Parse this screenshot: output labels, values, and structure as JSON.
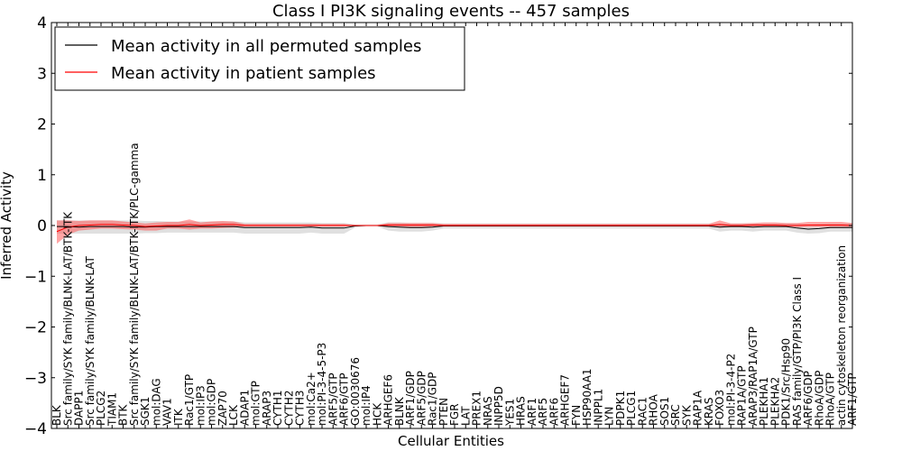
{
  "chart_data": {
    "type": "line",
    "title": "Class I PI3K signaling events -- 457 samples",
    "xlabel": "Cellular Entities",
    "ylabel": "Inferred Activity",
    "ylim": [
      -4,
      4
    ],
    "yticks": [
      -4,
      -3,
      -2,
      -1,
      0,
      1,
      2,
      3,
      4
    ],
    "ytick_labels": [
      "−4",
      "−3",
      "−2",
      "−1",
      "0",
      "1",
      "2",
      "3",
      "4"
    ],
    "grid": false,
    "legend_position": "top-left",
    "categories": [
      "BLK",
      "Src family/SYK family/BLNK-LAT/BTK-ITK",
      "DAPP1",
      "Src family/SYK family/BLNK-LAT",
      "PLCG2",
      "TIAM1",
      "BTK",
      "Src family/SYK family/BLNK-LAT/BTK-ITK/PLC-gamma",
      "SGK1",
      "mol:DAG",
      "VAV1",
      "ITK",
      "Rac1/GTP",
      "mol:IP3",
      "mol:GDP",
      "ZAP70",
      "LCK",
      "ADAP1",
      "mol:GTP",
      "ARAP3",
      "CYTH1",
      "CYTH2",
      "CYTH3",
      "mol:Ca2+",
      "mol:PI-3-4-5-P3",
      "ARF5/GTP",
      "ARF6/GTP",
      "GO:0030676",
      "mol:IP4",
      "HCK",
      "ARHGEF6",
      "BLNK",
      "ARF1/GDP",
      "ARF5/GDP",
      "Rac1/GDP",
      "PTEN",
      "FGR",
      "LAT",
      "PREX1",
      "NRAS",
      "INPP5D",
      "YES1",
      "HRAS",
      "ARF1",
      "ARF5",
      "ARF6",
      "ARHGEF7",
      "FYN",
      "HSP90AA1",
      "INPPL1",
      "LYN",
      "PDPK1",
      "PLCG1",
      "RAC1",
      "RHOA",
      "SOS1",
      "SRC",
      "SYK",
      "RAP1A",
      "KRAS",
      "FOXO3",
      "mol:PI-3-4-P2",
      "RAP1A/GTP",
      "ARAP3/RAP1A/GTP",
      "PLEKHA1",
      "PLEKHA2",
      "PDK1/Src/Hsp90",
      "RAS family/GTP/PI3K Class I",
      "ARF6/GDP",
      "RhoA/GDP",
      "RhoA/GTP",
      "actin cytoskeleton reorganization",
      "ARF1/GTP"
    ],
    "series": [
      {
        "name": "Mean activity in all permuted samples",
        "color": "#000000",
        "values": [
          -0.02,
          -0.02,
          -0.03,
          -0.02,
          -0.02,
          -0.02,
          -0.02,
          -0.03,
          -0.03,
          -0.02,
          -0.02,
          -0.02,
          -0.02,
          -0.02,
          -0.02,
          -0.02,
          -0.02,
          -0.04,
          -0.04,
          -0.04,
          -0.04,
          -0.04,
          -0.04,
          -0.03,
          -0.05,
          -0.05,
          -0.05,
          -0.01,
          0.0,
          0.0,
          -0.02,
          -0.03,
          -0.04,
          -0.04,
          -0.03,
          -0.01,
          -0.01,
          -0.01,
          -0.01,
          -0.01,
          -0.01,
          -0.01,
          -0.01,
          -0.01,
          -0.01,
          -0.01,
          -0.01,
          -0.01,
          -0.01,
          -0.01,
          -0.01,
          -0.01,
          -0.01,
          -0.01,
          -0.01,
          -0.01,
          -0.01,
          -0.01,
          -0.01,
          -0.01,
          -0.03,
          -0.02,
          -0.02,
          -0.03,
          -0.02,
          -0.02,
          -0.02,
          -0.05,
          -0.07,
          -0.06,
          -0.04,
          -0.04,
          -0.04
        ],
        "lower": [
          -0.16,
          -0.16,
          -0.16,
          -0.16,
          -0.16,
          -0.16,
          -0.16,
          -0.16,
          -0.15,
          -0.15,
          -0.14,
          -0.14,
          -0.14,
          -0.14,
          -0.14,
          -0.14,
          -0.14,
          -0.16,
          -0.16,
          -0.16,
          -0.16,
          -0.16,
          -0.16,
          -0.14,
          -0.16,
          -0.16,
          -0.16,
          -0.04,
          -0.02,
          -0.02,
          -0.1,
          -0.12,
          -0.12,
          -0.12,
          -0.1,
          -0.06,
          -0.06,
          -0.06,
          -0.06,
          -0.06,
          -0.06,
          -0.06,
          -0.06,
          -0.06,
          -0.06,
          -0.06,
          -0.06,
          -0.06,
          -0.06,
          -0.06,
          -0.06,
          -0.06,
          -0.06,
          -0.06,
          -0.06,
          -0.06,
          -0.06,
          -0.06,
          -0.06,
          -0.06,
          -0.12,
          -0.1,
          -0.1,
          -0.12,
          -0.1,
          -0.1,
          -0.1,
          -0.14,
          -0.16,
          -0.15,
          -0.12,
          -0.12,
          -0.12
        ],
        "upper": [
          0.1,
          0.1,
          0.1,
          0.1,
          0.1,
          0.1,
          0.1,
          0.1,
          0.09,
          0.09,
          0.08,
          0.08,
          0.08,
          0.08,
          0.08,
          0.08,
          0.08,
          0.06,
          0.06,
          0.06,
          0.06,
          0.06,
          0.06,
          0.06,
          0.05,
          0.05,
          0.05,
          0.02,
          0.02,
          0.02,
          0.06,
          0.06,
          0.05,
          0.05,
          0.05,
          0.04,
          0.04,
          0.04,
          0.04,
          0.04,
          0.04,
          0.04,
          0.04,
          0.04,
          0.04,
          0.04,
          0.04,
          0.04,
          0.04,
          0.04,
          0.04,
          0.04,
          0.04,
          0.04,
          0.04,
          0.04,
          0.04,
          0.04,
          0.04,
          0.04,
          0.04,
          0.04,
          0.04,
          0.04,
          0.04,
          0.04,
          0.04,
          0.04,
          0.02,
          0.03,
          0.04,
          0.04,
          0.04
        ]
      },
      {
        "name": "Mean activity in patient samples",
        "color": "#ff0000",
        "values": [
          -0.12,
          -0.03,
          0.0,
          0.01,
          0.02,
          0.02,
          0.01,
          0.0,
          -0.02,
          -0.01,
          0.0,
          0.0,
          0.02,
          0.0,
          0.01,
          0.02,
          0.02,
          0.0,
          0.0,
          0.0,
          0.0,
          0.0,
          0.0,
          0.0,
          0.0,
          0.0,
          0.0,
          0.0,
          0.0,
          0.0,
          0.01,
          0.01,
          0.01,
          0.01,
          0.01,
          0.0,
          0.0,
          0.0,
          0.0,
          0.0,
          0.0,
          0.0,
          0.0,
          0.0,
          0.0,
          0.0,
          0.0,
          0.0,
          0.0,
          0.0,
          0.0,
          0.0,
          0.0,
          0.0,
          0.0,
          0.0,
          0.0,
          0.0,
          0.0,
          0.0,
          0.02,
          0.0,
          0.0,
          0.01,
          0.01,
          0.01,
          0.0,
          0.0,
          0.01,
          0.01,
          0.01,
          0.01,
          0.0
        ],
        "lower": [
          -0.36,
          -0.18,
          -0.1,
          -0.08,
          -0.06,
          -0.06,
          -0.07,
          -0.08,
          -0.1,
          -0.1,
          -0.06,
          -0.06,
          -0.08,
          -0.06,
          -0.06,
          -0.05,
          -0.04,
          -0.02,
          -0.02,
          -0.02,
          -0.02,
          -0.02,
          -0.02,
          -0.02,
          -0.02,
          -0.02,
          -0.02,
          -0.01,
          -0.01,
          -0.01,
          -0.03,
          -0.03,
          -0.03,
          -0.03,
          -0.03,
          -0.02,
          -0.02,
          -0.02,
          -0.02,
          -0.02,
          -0.02,
          -0.02,
          -0.02,
          -0.02,
          -0.02,
          -0.02,
          -0.02,
          -0.02,
          -0.02,
          -0.02,
          -0.02,
          -0.02,
          -0.02,
          -0.02,
          -0.02,
          -0.02,
          -0.02,
          -0.02,
          -0.02,
          -0.02,
          -0.04,
          -0.03,
          -0.03,
          -0.03,
          -0.03,
          -0.03,
          -0.03,
          -0.03,
          -0.03,
          -0.03,
          -0.03,
          -0.03,
          -0.03
        ],
        "upper": [
          0.1,
          0.1,
          0.09,
          0.1,
          0.1,
          0.1,
          0.08,
          0.06,
          0.04,
          0.06,
          0.07,
          0.07,
          0.12,
          0.06,
          0.08,
          0.09,
          0.08,
          0.03,
          0.03,
          0.03,
          0.03,
          0.03,
          0.03,
          0.03,
          0.03,
          0.03,
          0.03,
          0.01,
          0.01,
          0.01,
          0.05,
          0.05,
          0.05,
          0.05,
          0.05,
          0.03,
          0.03,
          0.03,
          0.03,
          0.03,
          0.03,
          0.03,
          0.03,
          0.03,
          0.03,
          0.03,
          0.03,
          0.03,
          0.03,
          0.03,
          0.03,
          0.03,
          0.03,
          0.03,
          0.03,
          0.03,
          0.03,
          0.03,
          0.03,
          0.03,
          0.1,
          0.04,
          0.04,
          0.05,
          0.06,
          0.06,
          0.05,
          0.05,
          0.07,
          0.07,
          0.07,
          0.07,
          0.05
        ]
      }
    ]
  }
}
